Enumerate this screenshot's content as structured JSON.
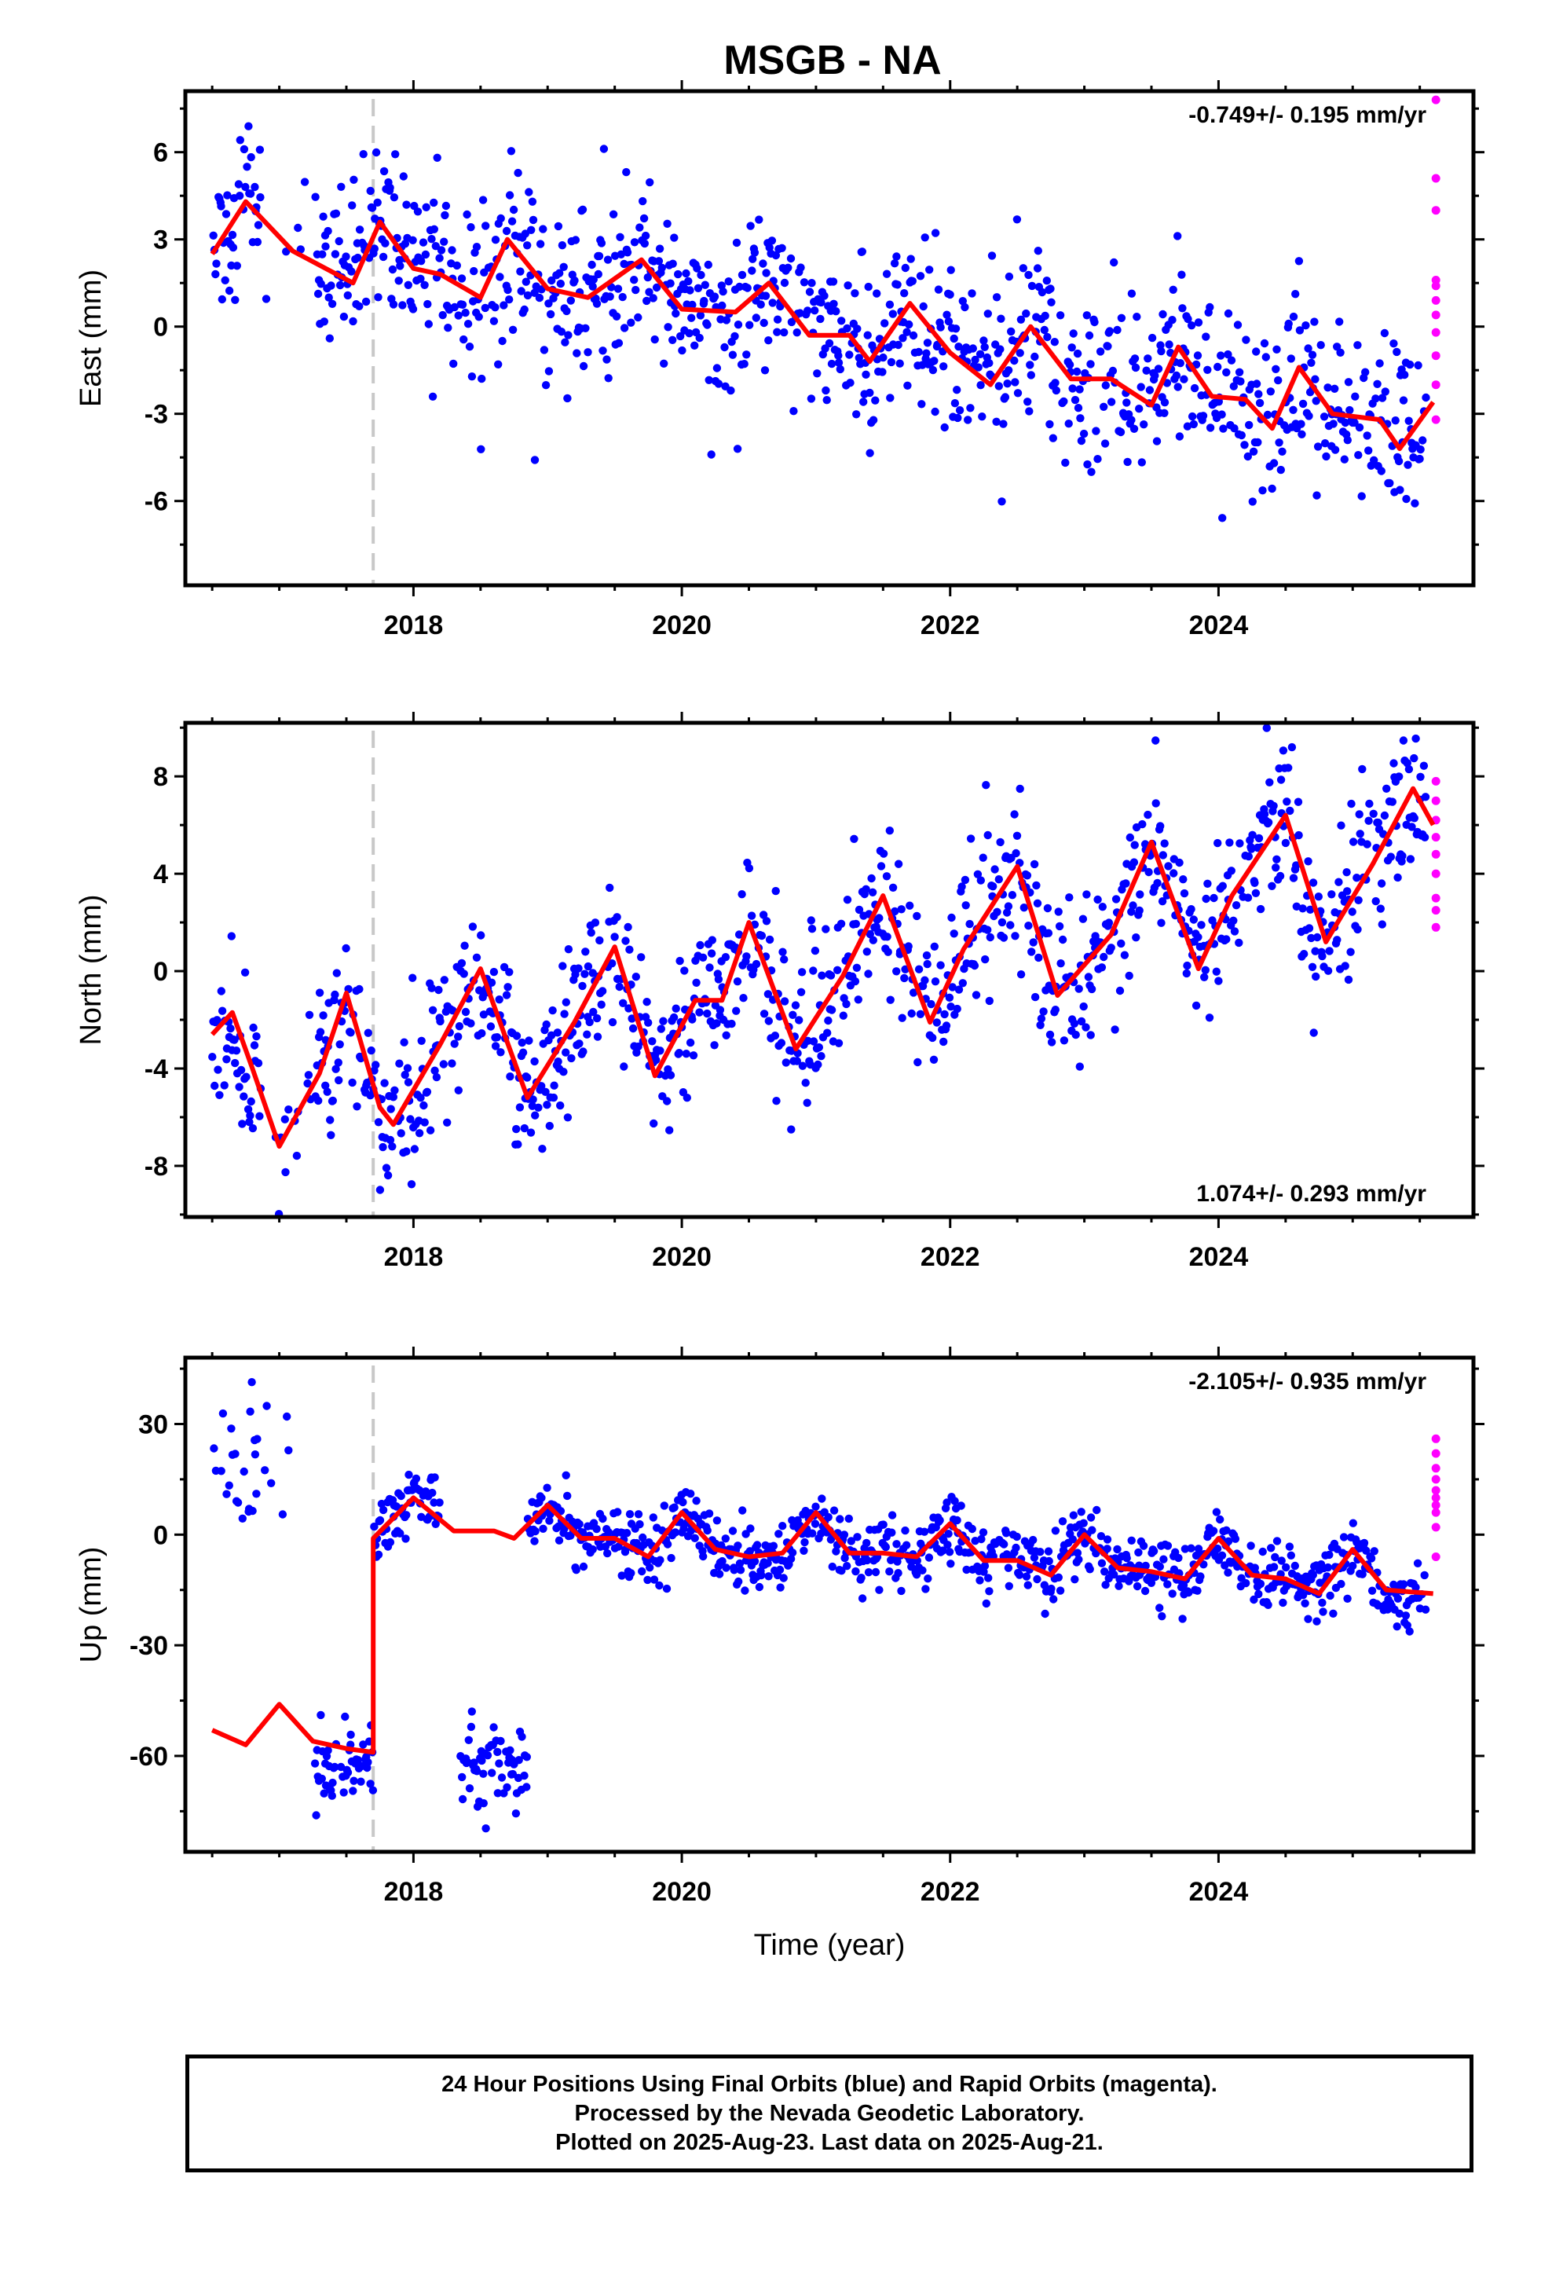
{
  "title": "MSGB - NA",
  "xlabel": "Time (year)",
  "caption": [
    "24 Hour Positions Using Final Orbits (blue) and Rapid Orbits (magenta).",
    "Processed by the Nevada Geodetic Laboratory.",
    "Plotted on 2025-Aug-23. Last data on 2025-Aug-21."
  ],
  "colors": {
    "final": "#0000ff",
    "rapid": "#ff00ff",
    "model": "#ff0000",
    "event": "#c8c8c8"
  },
  "chart_data": [
    {
      "type": "scatter",
      "component": "east",
      "ylabel": "East (mm)",
      "xlim": [
        2016.3,
        2025.9
      ],
      "ylim": [
        -8.9,
        8.1
      ],
      "yticks": [
        -6,
        -3,
        0,
        3,
        6
      ],
      "ytick_labels": [
        "-6",
        "-3",
        "0",
        "3",
        "6"
      ],
      "xticks": [
        2018,
        2020,
        2022,
        2024
      ],
      "xtick_labels": [
        "2018",
        "2020",
        "2022",
        "2024"
      ],
      "event_line_x": 2017.7,
      "velocity": "-0.749+/- 0.195 mm/yr",
      "velocity_position": "top-right",
      "series": [
        {
          "name": "final",
          "trend": "0.0 at 2016.5 to -3.3 at 2025.6",
          "scatter_sd": 1.5
        },
        {
          "name": "rapid",
          "y": [
            7.8,
            5.1,
            4.0,
            1.6,
            1.4,
            0.9,
            0.4,
            -0.2,
            -1.0,
            -2.0,
            -3.2
          ]
        },
        {
          "name": "model",
          "x": [
            2016.5,
            2016.75,
            2017.1,
            2017.55,
            2017.75,
            2018.0,
            2018.2,
            2018.5,
            2018.7,
            2019.0,
            2019.3,
            2019.7,
            2020.0,
            2020.4,
            2020.65,
            2020.95,
            2021.25,
            2021.4,
            2021.7,
            2022.0,
            2022.3,
            2022.6,
            2022.9,
            2023.2,
            2023.5,
            2023.7,
            2023.95,
            2024.2,
            2024.4,
            2024.6,
            2024.85,
            2025.2,
            2025.35,
            2025.6
          ],
          "y": [
            2.5,
            4.3,
            2.6,
            1.5,
            3.6,
            2.0,
            1.8,
            1.0,
            3.0,
            1.3,
            1.0,
            2.3,
            0.6,
            0.5,
            1.5,
            -0.3,
            -0.3,
            -1.2,
            0.8,
            -0.9,
            -2.0,
            0.0,
            -1.8,
            -1.8,
            -2.7,
            -0.7,
            -2.4,
            -2.5,
            -3.5,
            -1.4,
            -3.0,
            -3.2,
            -4.2,
            -2.6
          ]
        }
      ]
    },
    {
      "type": "scatter",
      "component": "north",
      "ylabel": "North (mm)",
      "xlim": [
        2016.3,
        2025.9
      ],
      "ylim": [
        -10.1,
        10.2
      ],
      "yticks": [
        -8,
        -4,
        0,
        4,
        8
      ],
      "ytick_labels": [
        "-8",
        "-4",
        "0",
        "4",
        "8"
      ],
      "xticks": [
        2018,
        2020,
        2022,
        2024
      ],
      "xtick_labels": [
        "2018",
        "2020",
        "2022",
        "2024"
      ],
      "event_line_x": 2017.7,
      "velocity": "1.074+/- 0.293 mm/yr",
      "velocity_position": "bottom-right",
      "series": [
        {
          "name": "final",
          "trend": "follows model curve",
          "scatter_sd": 1.6
        },
        {
          "name": "rapid",
          "y": [
            7.8,
            7.0,
            6.2,
            5.5,
            4.8,
            4.0,
            3.0,
            2.5,
            1.8
          ]
        },
        {
          "name": "model",
          "x": [
            2016.5,
            2016.65,
            2016.8,
            2017.0,
            2017.3,
            2017.5,
            2017.75,
            2017.85,
            2018.2,
            2018.5,
            2018.85,
            2019.2,
            2019.5,
            2019.8,
            2020.1,
            2020.3,
            2020.5,
            2020.85,
            2021.2,
            2021.5,
            2021.85,
            2022.1,
            2022.5,
            2022.8,
            2023.2,
            2023.5,
            2023.85,
            2024.1,
            2024.5,
            2024.8,
            2025.15,
            2025.45,
            2025.6
          ],
          "y": [
            -2.6,
            -1.7,
            -4.0,
            -7.2,
            -4.2,
            -0.9,
            -5.6,
            -6.3,
            -3.0,
            0.1,
            -5.2,
            -2.1,
            1.0,
            -4.3,
            -1.2,
            -1.2,
            2.0,
            -3.2,
            -0.2,
            3.1,
            -2.1,
            0.9,
            4.3,
            -1.0,
            1.5,
            5.3,
            0.1,
            3.1,
            6.4,
            1.2,
            4.4,
            7.5,
            6.0
          ]
        }
      ]
    },
    {
      "type": "scatter",
      "component": "up",
      "ylabel": "Up (mm)",
      "xlim": [
        2016.3,
        2025.9
      ],
      "ylim": [
        -86,
        48
      ],
      "yticks": [
        -60,
        -30,
        0,
        30
      ],
      "ytick_labels": [
        "-60",
        "-30",
        "0",
        "30"
      ],
      "xticks": [
        2018,
        2020,
        2022,
        2024
      ],
      "xtick_labels": [
        "2018",
        "2020",
        "2022",
        "2024"
      ],
      "event_line_x": 2017.7,
      "velocity": "-2.105+/- 0.935 mm/yr",
      "velocity_position": "top-right",
      "series": [
        {
          "name": "final",
          "trend": "offset of about +58 mm at 2017.7; pre-2017 ~+20 mm scatter",
          "scatter_sd": 4.5
        },
        {
          "name": "rapid",
          "y": [
            26,
            22,
            18,
            15,
            12,
            10,
            8,
            6,
            2,
            -6
          ]
        },
        {
          "name": "model",
          "x": [
            2016.5,
            2016.75,
            2017.0,
            2017.25,
            2017.5,
            2017.7,
            2017.7,
            2018.0,
            2018.3,
            2018.6,
            2018.75,
            2019.0,
            2019.25,
            2019.5,
            2019.75,
            2020.0,
            2020.25,
            2020.5,
            2020.75,
            2021.0,
            2021.25,
            2021.5,
            2021.75,
            2022.0,
            2022.25,
            2022.5,
            2022.75,
            2023.0,
            2023.25,
            2023.5,
            2023.75,
            2024.0,
            2024.25,
            2024.5,
            2024.75,
            2025.0,
            2025.25,
            2025.6
          ],
          "y": [
            -53,
            -57,
            -46,
            -56,
            -58,
            -59,
            -1,
            10,
            1,
            1,
            -1,
            8,
            -1,
            -1,
            -6,
            6,
            -4,
            -6,
            -5,
            6,
            -5,
            -5,
            -6,
            3,
            -7,
            -7,
            -11,
            0,
            -9,
            -10,
            -12,
            -1,
            -11,
            -12,
            -16,
            -4,
            -15,
            -16
          ]
        }
      ]
    }
  ]
}
